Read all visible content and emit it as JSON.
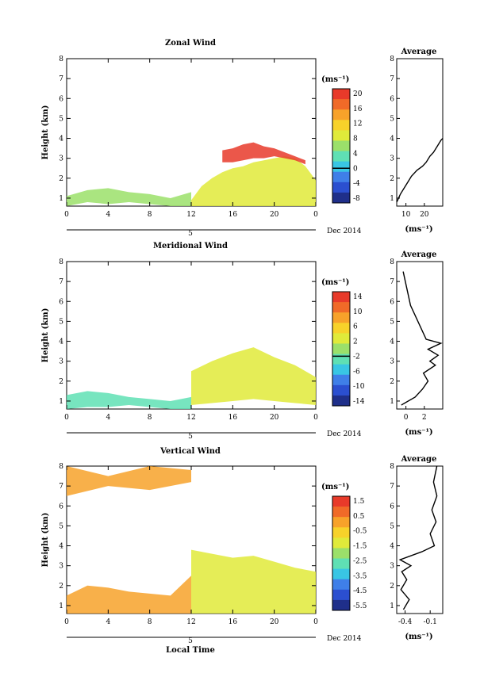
{
  "chart_data": [
    {
      "type": "heatmap",
      "title": "Zonal Wind",
      "ylabel": "Height (km)",
      "ylim": [
        0.6,
        8
      ],
      "xlim": [
        0,
        24
      ],
      "xticks": [
        "0",
        "4",
        "8",
        "12",
        "16",
        "20",
        "0"
      ],
      "yticks": [
        "1",
        "2",
        "3",
        "4",
        "5",
        "6",
        "7",
        "8"
      ],
      "date_label": "Dec 2014",
      "date_day": "5",
      "colorbar": {
        "unit": "(ms⁻¹)",
        "ticks": [
          "20",
          "16",
          "12",
          "8",
          "4",
          "0",
          "-4",
          "-8"
        ],
        "zero_index": 5
      },
      "regions": [
        {
          "x": [
            12,
            13,
            14,
            15,
            16,
            17,
            18,
            19,
            20,
            21,
            22,
            23,
            24
          ],
          "top": [
            0.9,
            1.6,
            2.0,
            2.3,
            2.5,
            2.6,
            2.8,
            2.9,
            3.0,
            3.1,
            3.0,
            2.6,
            1.9
          ],
          "bottom": [
            0.6,
            0.6,
            0.6,
            0.6,
            0.6,
            0.6,
            0.6,
            0.6,
            0.6,
            0.6,
            0.6,
            0.6,
            0.6
          ],
          "level": 8
        },
        {
          "x": [
            15,
            16,
            17,
            18,
            19,
            20,
            21,
            22,
            23
          ],
          "top": [
            3.4,
            3.5,
            3.7,
            3.8,
            3.6,
            3.5,
            3.3,
            3.1,
            2.9
          ],
          "bottom": [
            2.8,
            2.8,
            2.9,
            3.0,
            3.0,
            3.1,
            3.0,
            2.9,
            2.7
          ],
          "level": 20
        },
        {
          "x": [
            0,
            2,
            4,
            6,
            8,
            10,
            12
          ],
          "top": [
            1.1,
            1.4,
            1.5,
            1.3,
            1.2,
            1.0,
            1.3
          ],
          "bottom": [
            0.6,
            0.8,
            0.7,
            0.8,
            0.7,
            0.6,
            0.6
          ],
          "level": 5
        }
      ],
      "average": {
        "title": "Average",
        "xlabel": "(ms⁻¹)",
        "xticks": [
          "10",
          "20"
        ],
        "xlim": [
          5,
          30
        ],
        "x": [
          5,
          7,
          9,
          11,
          13,
          16,
          19,
          21,
          23,
          25,
          27,
          29,
          30
        ],
        "height": [
          0.8,
          1.2,
          1.5,
          1.8,
          2.1,
          2.4,
          2.6,
          2.8,
          3.1,
          3.3,
          3.6,
          3.9,
          4.0
        ]
      }
    },
    {
      "type": "heatmap",
      "title": "Meridional Wind",
      "ylabel": "Height (km)",
      "ylim": [
        0.6,
        8
      ],
      "xlim": [
        0,
        24
      ],
      "xticks": [
        "0",
        "4",
        "8",
        "12",
        "16",
        "20",
        "0"
      ],
      "yticks": [
        "1",
        "2",
        "3",
        "4",
        "5",
        "6",
        "7",
        "8"
      ],
      "date_label": "Dec 2014",
      "date_day": "5",
      "colorbar": {
        "unit": "(ms⁻¹)",
        "ticks": [
          "14",
          "10",
          "6",
          "2",
          "-2",
          "-6",
          "-10",
          "-14"
        ],
        "zero_index": 4
      },
      "regions": [
        {
          "x": [
            12,
            14,
            16,
            18,
            20,
            22,
            24
          ],
          "top": [
            2.5,
            3.0,
            3.4,
            3.7,
            3.2,
            2.8,
            2.2
          ],
          "bottom": [
            0.8,
            0.9,
            1.0,
            1.1,
            1.0,
            0.9,
            0.8
          ],
          "level": 4
        },
        {
          "x": [
            0,
            2,
            4,
            6,
            8,
            10,
            12
          ],
          "top": [
            1.3,
            1.5,
            1.4,
            1.2,
            1.1,
            1.0,
            1.2
          ],
          "bottom": [
            0.6,
            0.7,
            0.7,
            0.8,
            0.7,
            0.6,
            0.6
          ],
          "level": -4
        }
      ],
      "average": {
        "title": "Average",
        "xlabel": "(ms⁻¹)",
        "xticks": [
          "0",
          "2"
        ],
        "xlim": [
          -1,
          4
        ],
        "x": [
          -0.5,
          1.0,
          1.8,
          2.4,
          1.9,
          3.2,
          2.6,
          3.5,
          2.4,
          3.8,
          2.2,
          0.5,
          -0.3
        ],
        "height": [
          0.8,
          1.2,
          1.6,
          2.0,
          2.4,
          2.8,
          3.0,
          3.3,
          3.6,
          3.9,
          4.1,
          5.8,
          7.5
        ]
      }
    },
    {
      "type": "heatmap",
      "title": "Vertical Wind",
      "ylabel": "Height (km)",
      "xlabel": "Local Time",
      "ylim": [
        0.6,
        8
      ],
      "xlim": [
        0,
        24
      ],
      "xticks": [
        "0",
        "4",
        "8",
        "12",
        "16",
        "20",
        "0"
      ],
      "yticks": [
        "1",
        "2",
        "3",
        "4",
        "5",
        "6",
        "7",
        "8"
      ],
      "date_label": "Dec 2014",
      "date_day": "5",
      "colorbar": {
        "unit": "(ms⁻¹)",
        "ticks": [
          "1.5",
          "0.5",
          "-0.5",
          "-1.5",
          "-2.5",
          "-3.5",
          "-4.5",
          "-5.5"
        ],
        "zero_index": null
      },
      "regions": [
        {
          "x": [
            0,
            2,
            4,
            6,
            8,
            10,
            12
          ],
          "top": [
            1.5,
            2.0,
            1.9,
            1.7,
            1.6,
            1.5,
            2.5
          ],
          "bottom": [
            0.6,
            0.6,
            0.6,
            0.6,
            0.6,
            0.6,
            0.6
          ],
          "level": 0.3
        },
        {
          "x": [
            12,
            14,
            16,
            18,
            20,
            22,
            24
          ],
          "top": [
            3.8,
            3.6,
            3.4,
            3.5,
            3.2,
            2.9,
            2.7
          ],
          "bottom": [
            0.6,
            0.6,
            0.6,
            0.6,
            0.6,
            0.6,
            0.6
          ],
          "level": -1.2
        },
        {
          "x": [
            0,
            4,
            8,
            12
          ],
          "top": [
            8.0,
            7.5,
            8.0,
            7.8
          ],
          "bottom": [
            6.5,
            7.0,
            6.8,
            7.2
          ],
          "level": 0.4
        }
      ],
      "average": {
        "title": "Average",
        "xlabel": "(ms⁻¹)",
        "xticks": [
          "-0.4",
          "-0.1"
        ],
        "xlim": [
          -0.5,
          0.05
        ],
        "x": [
          -0.42,
          -0.35,
          -0.45,
          -0.38,
          -0.44,
          -0.33,
          -0.46,
          -0.2,
          -0.05,
          -0.1,
          -0.03,
          -0.08,
          -0.02,
          -0.06,
          -0.02
        ],
        "height": [
          0.8,
          1.3,
          1.8,
          2.3,
          2.7,
          3.0,
          3.3,
          3.7,
          4.0,
          4.6,
          5.2,
          5.8,
          6.5,
          7.2,
          8.0
        ]
      }
    }
  ]
}
